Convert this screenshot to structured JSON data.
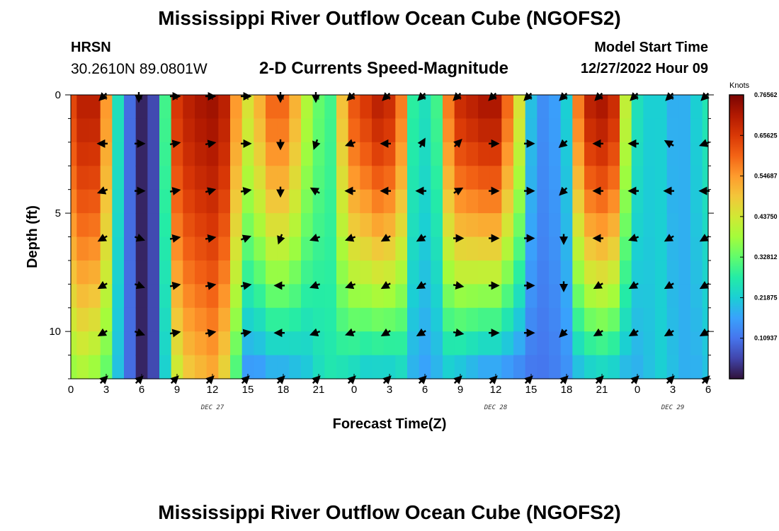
{
  "header": {
    "title": "Mississippi River Outflow Ocean Cube (NGOFS2)",
    "station": "HRSN",
    "coords": "30.2610N  89.0801W",
    "plot_title": "2-D Currents Speed-Magnitude",
    "start_label": "Model Start Time",
    "start_value": "12/27/2022 Hour 09"
  },
  "footer_title": "Mississippi River Outflow Ocean Cube (NGOFS2)",
  "chart_data": {
    "type": "heatmap",
    "title": "2-D Currents Speed-Magnitude",
    "xlabel": "Forecast Time(Z)",
    "ylabel": "Depth (ft)",
    "x_ticks": [
      "0",
      "3",
      "6",
      "9",
      "12",
      "15",
      "18",
      "21",
      "0",
      "3",
      "6",
      "9",
      "12",
      "15",
      "18",
      "21",
      "0",
      "3",
      "6"
    ],
    "x_range_hours": [
      0,
      54
    ],
    "day_labels": [
      {
        "label": "DEC 27",
        "hour": 12
      },
      {
        "label": "DEC 28",
        "hour": 36
      },
      {
        "label": "DEC 29",
        "hour": 51
      }
    ],
    "y_ticks": [
      "0",
      "5",
      "10"
    ],
    "y_range_ft": [
      0,
      12
    ],
    "colorbar": {
      "unit": "Knots",
      "ticks": [
        "0.76562",
        "0.65625",
        "0.54687",
        "0.43750",
        "0.32812",
        "0.21875",
        "0.10937"
      ],
      "tick_values": [
        0.76562,
        0.65625,
        0.54687,
        0.4375,
        0.32812,
        0.21875,
        0.10937
      ],
      "min": 0.0,
      "max": 0.76562,
      "colors": [
        "#30123b",
        "#4145ab",
        "#4675ed",
        "#39a2fc",
        "#1bcfd4",
        "#24eca6",
        "#61fc6c",
        "#a4fc3b",
        "#d1e834",
        "#f3c63a",
        "#fe9b2d",
        "#f36315",
        "#d93806",
        "#b11901",
        "#7a0402"
      ]
    },
    "speed_profile": {
      "hours": [
        0,
        1,
        2,
        3,
        4,
        5,
        6,
        7,
        8,
        9,
        10,
        11,
        12,
        13,
        14,
        15,
        16,
        17,
        18,
        19,
        20,
        21,
        22,
        23,
        24,
        25,
        26,
        27,
        28,
        29,
        30,
        31,
        32,
        33,
        34,
        35,
        36,
        37,
        38,
        39,
        40,
        41,
        42,
        43,
        44,
        45,
        46,
        47,
        48,
        49,
        50,
        51,
        52,
        53,
        54
      ],
      "surface_knots": [
        0.64,
        0.7,
        0.7,
        0.55,
        0.25,
        0.1,
        0.02,
        0.06,
        0.3,
        0.66,
        0.7,
        0.72,
        0.73,
        0.7,
        0.55,
        0.45,
        0.52,
        0.6,
        0.6,
        0.52,
        0.4,
        0.33,
        0.3,
        0.5,
        0.62,
        0.66,
        0.7,
        0.68,
        0.58,
        0.28,
        0.25,
        0.3,
        0.58,
        0.68,
        0.7,
        0.72,
        0.72,
        0.6,
        0.45,
        0.2,
        0.14,
        0.16,
        0.22,
        0.58,
        0.7,
        0.72,
        0.68,
        0.42,
        0.25,
        0.22,
        0.22,
        0.18,
        0.18,
        0.22,
        0.26
      ],
      "bottom_knots": [
        0.36,
        0.38,
        0.36,
        0.32,
        0.2,
        0.1,
        0.02,
        0.06,
        0.22,
        0.42,
        0.48,
        0.5,
        0.52,
        0.46,
        0.3,
        0.14,
        0.14,
        0.16,
        0.16,
        0.18,
        0.2,
        0.24,
        0.26,
        0.24,
        0.22,
        0.2,
        0.2,
        0.2,
        0.22,
        0.18,
        0.16,
        0.18,
        0.2,
        0.18,
        0.16,
        0.14,
        0.14,
        0.13,
        0.12,
        0.11,
        0.11,
        0.12,
        0.14,
        0.18,
        0.2,
        0.21,
        0.2,
        0.18,
        0.18,
        0.2,
        0.22,
        0.2,
        0.18,
        0.18,
        0.2
      ]
    },
    "vectors": {
      "hours": [
        3,
        6,
        9,
        12,
        15,
        18,
        21,
        24,
        27,
        30,
        33,
        36,
        39,
        42,
        45,
        48,
        51,
        54
      ],
      "depths_ft": [
        0,
        2,
        4,
        6,
        8,
        10,
        12
      ],
      "directions_deg_compass": [
        [
          225,
          180,
          90,
          90,
          90,
          180,
          180,
          225,
          225,
          225,
          225,
          225,
          225,
          225,
          225,
          225,
          225,
          225
        ],
        [
          270,
          90,
          80,
          80,
          90,
          180,
          200,
          250,
          270,
          30,
          45,
          90,
          90,
          230,
          270,
          270,
          300,
          250
        ],
        [
          250,
          90,
          80,
          75,
          80,
          180,
          300,
          270,
          270,
          270,
          60,
          90,
          90,
          225,
          270,
          270,
          270,
          270
        ],
        [
          240,
          110,
          80,
          80,
          70,
          200,
          250,
          250,
          240,
          240,
          90,
          90,
          90,
          180,
          270,
          250,
          240,
          240
        ],
        [
          240,
          110,
          80,
          80,
          80,
          270,
          250,
          250,
          240,
          240,
          100,
          90,
          90,
          180,
          240,
          240,
          240,
          240
        ],
        [
          240,
          110,
          80,
          80,
          80,
          270,
          250,
          250,
          240,
          240,
          100,
          90,
          90,
          225,
          240,
          240,
          240,
          240
        ],
        [
          45,
          45,
          45,
          45,
          45,
          45,
          45,
          45,
          45,
          45,
          45,
          45,
          45,
          45,
          45,
          45,
          45,
          45
        ]
      ]
    }
  }
}
